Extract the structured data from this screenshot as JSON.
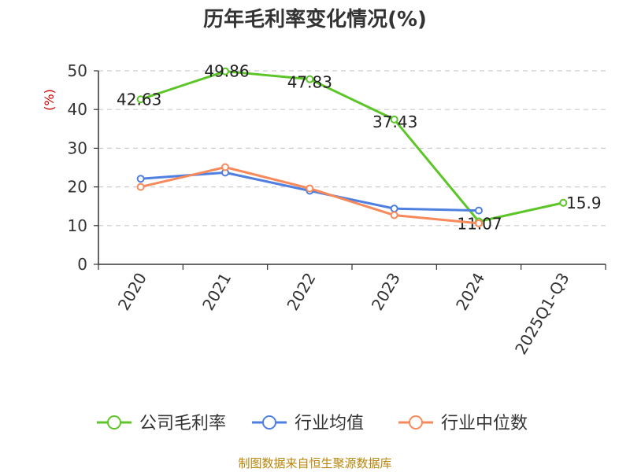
{
  "chart_data": {
    "type": "line",
    "title": "历年毛利率变化情况(%)",
    "ylabel": "(%)",
    "xlabel": "",
    "categories": [
      "2020",
      "2021",
      "2022",
      "2023",
      "2024",
      "2025Q1-Q3"
    ],
    "ylim": [
      0,
      50
    ],
    "yticks": [
      0,
      10,
      20,
      30,
      40,
      50
    ],
    "grid": true,
    "legend_position": "bottom",
    "series": [
      {
        "name": "公司毛利率",
        "color": "#5cc528",
        "values": [
          42.63,
          49.86,
          47.83,
          37.43,
          11.07,
          15.9
        ],
        "labels": [
          "42.63",
          "49.86",
          "47.83",
          "37.43",
          "11.07",
          "15.9"
        ]
      },
      {
        "name": "行业均值",
        "color": "#4f7fe0",
        "values": [
          22.1,
          23.7,
          19.0,
          14.4,
          13.9,
          null
        ]
      },
      {
        "name": "行业中位数",
        "color": "#f7895a",
        "values": [
          20.0,
          25.1,
          19.6,
          12.7,
          10.6,
          null
        ]
      }
    ]
  },
  "footer": {
    "source": "制图数据来自恒生聚源数据库"
  }
}
